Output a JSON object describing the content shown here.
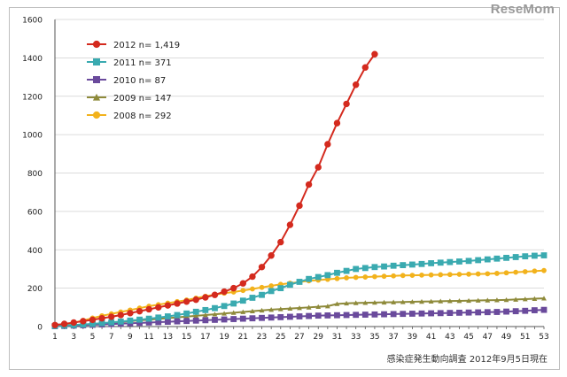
{
  "watermark": "ReseMom",
  "source_note": "感染症発生動向調査 2012年9月5日現在",
  "chart_data": {
    "type": "line",
    "title": "",
    "xlabel": "",
    "ylabel": "",
    "xlim": [
      1,
      53
    ],
    "ylim": [
      0,
      1600
    ],
    "yticks": [
      0,
      200,
      400,
      600,
      800,
      1000,
      1200,
      1400,
      1600
    ],
    "xticks": [
      1,
      3,
      5,
      7,
      9,
      11,
      13,
      15,
      17,
      19,
      21,
      23,
      25,
      27,
      29,
      31,
      33,
      35,
      37,
      39,
      41,
      43,
      45,
      47,
      49,
      51,
      53
    ],
    "grid": "horizontal",
    "legend_position": "top-left",
    "series": [
      {
        "name": "2012",
        "label": "2012 n= 1,419",
        "color": "#d42a1e",
        "marker": "circle",
        "x": [
          1,
          2,
          3,
          4,
          5,
          6,
          7,
          8,
          9,
          10,
          11,
          12,
          13,
          14,
          15,
          16,
          17,
          18,
          19,
          20,
          21,
          22,
          23,
          24,
          25,
          26,
          27,
          28,
          29,
          30,
          31,
          32,
          33,
          34,
          35
        ],
        "values": [
          8,
          14,
          21,
          28,
          35,
          43,
          51,
          60,
          70,
          80,
          90,
          100,
          110,
          120,
          130,
          140,
          152,
          165,
          182,
          200,
          225,
          260,
          310,
          370,
          440,
          530,
          630,
          740,
          830,
          950,
          1060,
          1160,
          1260,
          1350,
          1419
        ]
      },
      {
        "name": "2011",
        "label": "2011 n= 371",
        "color": "#3aaab0",
        "marker": "square",
        "x": [
          1,
          2,
          3,
          4,
          5,
          6,
          7,
          8,
          9,
          10,
          11,
          12,
          13,
          14,
          15,
          16,
          17,
          18,
          19,
          20,
          21,
          22,
          23,
          24,
          25,
          26,
          27,
          28,
          29,
          30,
          31,
          32,
          33,
          34,
          35,
          36,
          37,
          38,
          39,
          40,
          41,
          42,
          43,
          44,
          45,
          46,
          47,
          48,
          49,
          50,
          51,
          52,
          53
        ],
        "values": [
          3,
          5,
          8,
          11,
          14,
          18,
          22,
          26,
          31,
          36,
          41,
          47,
          53,
          60,
          68,
          77,
          86,
          96,
          107,
          120,
          135,
          150,
          165,
          185,
          200,
          218,
          233,
          248,
          258,
          268,
          280,
          290,
          300,
          305,
          310,
          313,
          317,
          320,
          323,
          326,
          330,
          333,
          336,
          339,
          342,
          346,
          350,
          354,
          358,
          362,
          366,
          369,
          371
        ]
      },
      {
        "name": "2010",
        "label": "2010 n= 87",
        "color": "#6a4a9c",
        "marker": "square",
        "x": [
          1,
          2,
          3,
          4,
          5,
          6,
          7,
          8,
          9,
          10,
          11,
          12,
          13,
          14,
          15,
          16,
          17,
          18,
          19,
          20,
          21,
          22,
          23,
          24,
          25,
          26,
          27,
          28,
          29,
          30,
          31,
          32,
          33,
          34,
          35,
          36,
          37,
          38,
          39,
          40,
          41,
          42,
          43,
          44,
          45,
          46,
          47,
          48,
          49,
          50,
          51,
          52,
          53
        ],
        "values": [
          2,
          3,
          5,
          7,
          9,
          11,
          13,
          15,
          17,
          19,
          21,
          23,
          25,
          27,
          29,
          31,
          33,
          35,
          37,
          39,
          41,
          43,
          45,
          47,
          49,
          51,
          53,
          55,
          57,
          58,
          59,
          60,
          61,
          62,
          63,
          64,
          65,
          66,
          67,
          68,
          69,
          70,
          71,
          72,
          73,
          74,
          75,
          76,
          78,
          80,
          82,
          85,
          87
        ]
      },
      {
        "name": "2009",
        "label": "2009 n= 147",
        "color": "#8e8a3a",
        "marker": "triangle",
        "x": [
          1,
          2,
          3,
          4,
          5,
          6,
          7,
          8,
          9,
          10,
          11,
          12,
          13,
          14,
          15,
          16,
          17,
          18,
          19,
          20,
          21,
          22,
          23,
          24,
          25,
          26,
          27,
          28,
          29,
          30,
          31,
          32,
          33,
          34,
          35,
          36,
          37,
          38,
          39,
          40,
          41,
          42,
          43,
          44,
          45,
          46,
          47,
          48,
          49,
          50,
          51,
          52,
          53
        ],
        "values": [
          2,
          4,
          7,
          10,
          13,
          16,
          20,
          24,
          28,
          32,
          36,
          40,
          44,
          48,
          52,
          56,
          60,
          64,
          68,
          72,
          76,
          80,
          84,
          88,
          91,
          94,
          97,
          100,
          103,
          106,
          118,
          121,
          123,
          124,
          125,
          126,
          127,
          128,
          129,
          130,
          131,
          132,
          133,
          134,
          135,
          136,
          137,
          138,
          139,
          141,
          143,
          145,
          147
        ]
      },
      {
        "name": "2008",
        "label": "2008 n= 292",
        "color": "#f2b21c",
        "marker": "circle",
        "x": [
          1,
          2,
          3,
          4,
          5,
          6,
          7,
          8,
          9,
          10,
          11,
          12,
          13,
          14,
          15,
          16,
          17,
          18,
          19,
          20,
          21,
          22,
          23,
          24,
          25,
          26,
          27,
          28,
          29,
          30,
          31,
          32,
          33,
          34,
          35,
          36,
          37,
          38,
          39,
          40,
          41,
          42,
          43,
          44,
          45,
          46,
          47,
          48,
          49,
          50,
          51,
          52,
          53
        ],
        "values": [
          4,
          10,
          20,
          32,
          44,
          56,
          66,
          76,
          86,
          96,
          106,
          114,
          122,
          130,
          138,
          148,
          158,
          166,
          174,
          180,
          188,
          196,
          204,
          212,
          220,
          226,
          232,
          238,
          242,
          246,
          250,
          254,
          256,
          258,
          260,
          262,
          264,
          266,
          267,
          268,
          269,
          270,
          271,
          272,
          273,
          274,
          275,
          277,
          280,
          283,
          286,
          289,
          292
        ]
      }
    ]
  }
}
